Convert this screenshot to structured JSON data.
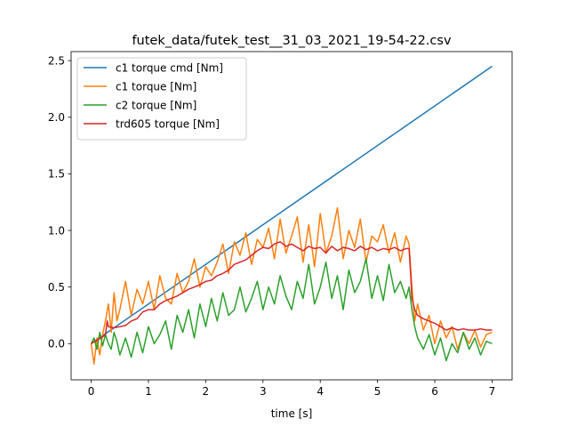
{
  "chart_data": {
    "type": "line",
    "title": "futek_data/futek_test__31_03_2021_19-54-22.csv",
    "xlabel": "time [s]",
    "ylabel": "",
    "xlim": [
      -0.35,
      7.35
    ],
    "ylim": [
      -0.32,
      2.58
    ],
    "xticks": [
      0,
      1,
      2,
      3,
      4,
      5,
      6,
      7
    ],
    "yticks": [
      0.0,
      0.5,
      1.0,
      1.5,
      2.0,
      2.5
    ],
    "xtick_labels": [
      "0",
      "1",
      "2",
      "3",
      "4",
      "5",
      "6",
      "7"
    ],
    "ytick_labels": [
      "0.0",
      "0.5",
      "1.0",
      "1.5",
      "2.0",
      "2.5"
    ],
    "grid": false,
    "legend_position": "upper-left",
    "series": [
      {
        "name": "c1 torque cmd [Nm]",
        "color": "#1f77b4",
        "x": [
          0,
          7
        ],
        "y": [
          0.0,
          2.45
        ]
      },
      {
        "name": "c1 torque [Nm]",
        "color": "#ff7f0e",
        "x": [
          0,
          0.05,
          0.1,
          0.15,
          0.2,
          0.25,
          0.3,
          0.35,
          0.4,
          0.45,
          0.5,
          0.6,
          0.7,
          0.8,
          0.9,
          1.0,
          1.1,
          1.2,
          1.3,
          1.4,
          1.5,
          1.6,
          1.7,
          1.8,
          1.9,
          2.0,
          2.1,
          2.2,
          2.3,
          2.4,
          2.5,
          2.6,
          2.7,
          2.8,
          2.9,
          3.0,
          3.1,
          3.2,
          3.3,
          3.4,
          3.5,
          3.6,
          3.7,
          3.8,
          3.9,
          4.0,
          4.1,
          4.2,
          4.3,
          4.4,
          4.5,
          4.6,
          4.7,
          4.8,
          4.9,
          5.0,
          5.1,
          5.2,
          5.3,
          5.4,
          5.5,
          5.55,
          5.6,
          5.65,
          5.7,
          5.8,
          5.9,
          6.0,
          6.1,
          6.2,
          6.3,
          6.4,
          6.5,
          6.6,
          6.7,
          6.8,
          6.9,
          7.0
        ],
        "y": [
          0.0,
          -0.18,
          0.05,
          -0.1,
          0.08,
          0.2,
          0.35,
          0.1,
          0.45,
          0.2,
          0.3,
          0.55,
          0.25,
          0.48,
          0.35,
          0.55,
          0.3,
          0.6,
          0.4,
          0.35,
          0.62,
          0.45,
          0.55,
          0.75,
          0.5,
          0.68,
          0.6,
          0.72,
          0.88,
          0.62,
          0.9,
          0.78,
          0.98,
          0.7,
          0.92,
          0.85,
          1.02,
          0.75,
          1.1,
          0.8,
          0.95,
          1.12,
          0.72,
          1.05,
          0.68,
          1.15,
          0.8,
          0.95,
          1.2,
          0.75,
          1.0,
          0.85,
          1.1,
          0.72,
          0.95,
          0.9,
          1.05,
          0.8,
          0.98,
          0.72,
          0.95,
          0.88,
          0.5,
          0.2,
          0.35,
          0.12,
          0.25,
          0.0,
          0.2,
          0.05,
          0.15,
          -0.05,
          0.1,
          0.0,
          0.12,
          -0.03,
          0.08,
          0.1
        ]
      },
      {
        "name": "c2 torque [Nm]",
        "color": "#2ca02c",
        "x": [
          0,
          0.05,
          0.1,
          0.15,
          0.2,
          0.25,
          0.3,
          0.35,
          0.4,
          0.45,
          0.5,
          0.6,
          0.7,
          0.8,
          0.9,
          1.0,
          1.1,
          1.2,
          1.3,
          1.4,
          1.5,
          1.6,
          1.7,
          1.8,
          1.9,
          2.0,
          2.1,
          2.2,
          2.3,
          2.4,
          2.5,
          2.6,
          2.7,
          2.8,
          2.9,
          3.0,
          3.1,
          3.2,
          3.3,
          3.4,
          3.5,
          3.6,
          3.7,
          3.8,
          3.9,
          4.0,
          4.1,
          4.2,
          4.3,
          4.4,
          4.5,
          4.6,
          4.7,
          4.8,
          4.9,
          5.0,
          5.1,
          5.2,
          5.3,
          5.4,
          5.5,
          5.55,
          5.6,
          5.65,
          5.7,
          5.8,
          5.9,
          6.0,
          6.1,
          6.2,
          6.3,
          6.4,
          6.5,
          6.6,
          6.7,
          6.8,
          6.9,
          7.0
        ],
        "y": [
          0.0,
          0.05,
          -0.05,
          0.1,
          -0.02,
          0.08,
          0.0,
          -0.05,
          0.1,
          0.02,
          -0.1,
          0.05,
          -0.12,
          0.1,
          -0.08,
          0.15,
          0.0,
          0.08,
          0.2,
          -0.05,
          0.25,
          0.1,
          0.3,
          0.05,
          0.35,
          0.15,
          0.4,
          0.2,
          0.45,
          0.25,
          0.3,
          0.5,
          0.28,
          0.4,
          0.55,
          0.3,
          0.5,
          0.35,
          0.6,
          0.42,
          0.3,
          0.55,
          0.4,
          0.7,
          0.35,
          0.5,
          0.72,
          0.4,
          0.6,
          0.3,
          0.65,
          0.45,
          0.55,
          0.75,
          0.4,
          0.6,
          0.38,
          0.7,
          0.45,
          0.55,
          0.4,
          0.5,
          0.3,
          0.15,
          0.05,
          -0.05,
          0.08,
          -0.1,
          0.05,
          -0.15,
          0.0,
          -0.08,
          0.1,
          -0.05,
          0.05,
          -0.1,
          0.02,
          0.0
        ]
      },
      {
        "name": "trd605 torque [Nm]",
        "color": "#d62728",
        "x": [
          0,
          0.1,
          0.2,
          0.25,
          0.28,
          0.3,
          0.4,
          0.5,
          0.6,
          0.7,
          0.8,
          0.9,
          1.0,
          1.1,
          1.2,
          1.3,
          1.4,
          1.5,
          1.6,
          1.7,
          1.8,
          1.9,
          2.0,
          2.1,
          2.2,
          2.3,
          2.4,
          2.5,
          2.6,
          2.7,
          2.8,
          2.9,
          3.0,
          3.1,
          3.2,
          3.3,
          3.4,
          3.5,
          3.6,
          3.7,
          3.8,
          3.9,
          4.0,
          4.1,
          4.2,
          4.3,
          4.4,
          4.5,
          4.6,
          4.7,
          4.8,
          4.9,
          5.0,
          5.1,
          5.2,
          5.3,
          5.4,
          5.5,
          5.55,
          5.58,
          5.6,
          5.65,
          5.7,
          5.8,
          5.9,
          6.0,
          6.1,
          6.2,
          6.3,
          6.4,
          6.5,
          6.6,
          6.7,
          6.8,
          6.9,
          7.0
        ],
        "y": [
          0.0,
          0.03,
          0.06,
          0.08,
          0.2,
          0.15,
          0.14,
          0.15,
          0.16,
          0.2,
          0.22,
          0.28,
          0.3,
          0.3,
          0.35,
          0.38,
          0.4,
          0.42,
          0.45,
          0.48,
          0.5,
          0.52,
          0.55,
          0.56,
          0.6,
          0.62,
          0.65,
          0.7,
          0.72,
          0.74,
          0.78,
          0.82,
          0.85,
          0.84,
          0.88,
          0.9,
          0.86,
          0.88,
          0.85,
          0.82,
          0.86,
          0.84,
          0.85,
          0.8,
          0.86,
          0.82,
          0.85,
          0.84,
          0.82,
          0.86,
          0.83,
          0.85,
          0.82,
          0.84,
          0.83,
          0.85,
          0.82,
          0.84,
          0.84,
          0.6,
          0.4,
          0.3,
          0.25,
          0.22,
          0.2,
          0.18,
          0.15,
          0.12,
          0.14,
          0.12,
          0.13,
          0.12,
          0.12,
          0.13,
          0.12,
          0.12
        ]
      }
    ]
  }
}
